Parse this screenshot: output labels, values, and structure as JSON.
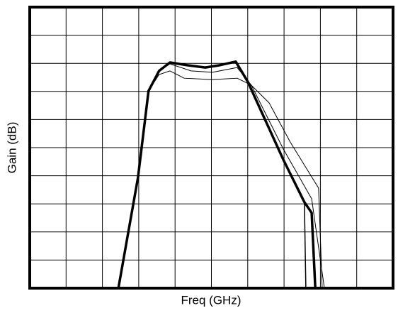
{
  "chart_data": {
    "type": "line",
    "xlabel": "Freq (GHz)",
    "ylabel": "Gain (dB)",
    "xlim": [
      0,
      10
    ],
    "ylim": [
      0,
      10
    ],
    "xticks": [
      0,
      1,
      2,
      3,
      4,
      5,
      6,
      7,
      8,
      9,
      10
    ],
    "yticks": [
      0,
      1,
      2,
      3,
      4,
      5,
      6,
      7,
      8,
      9,
      10
    ],
    "grid": true,
    "series": [
      {
        "color": "#000000",
        "width": 3.5,
        "x": [
          2.44,
          2.98,
          3.27,
          3.56,
          3.86,
          4.35,
          4.83,
          5.22,
          5.67,
          6.0,
          6.49,
          6.98,
          7.56,
          7.76,
          7.86
        ],
        "values": [
          0,
          3.94,
          7.02,
          7.73,
          8.03,
          7.93,
          7.85,
          7.93,
          8.06,
          7.35,
          5.96,
          4.57,
          3.06,
          2.68,
          0
        ]
      },
      {
        "color": "#000000",
        "width": 1,
        "x": [
          2.44,
          2.98,
          3.27,
          3.56,
          3.86,
          4.25,
          5.03,
          5.71,
          6.1,
          6.59,
          7.17,
          7.95,
          8.05
        ],
        "values": [
          0,
          3.94,
          7.02,
          7.6,
          7.73,
          7.47,
          7.42,
          7.47,
          7.22,
          6.59,
          5.2,
          3.56,
          0
        ]
      },
      {
        "color": "#000000",
        "width": 1,
        "x": [
          2.44,
          2.98,
          3.27,
          3.56,
          3.86,
          4.44,
          5.03,
          5.71,
          6.1,
          6.98,
          7.76,
          8.11
        ],
        "values": [
          0,
          3.94,
          7.02,
          7.73,
          7.98,
          7.73,
          7.68,
          7.85,
          7.22,
          4.95,
          3.18,
          0
        ]
      },
      {
        "color": "#000000",
        "width": 1.5,
        "x": [
          7.56,
          7.6
        ],
        "values": [
          3.06,
          0
        ]
      }
    ]
  }
}
